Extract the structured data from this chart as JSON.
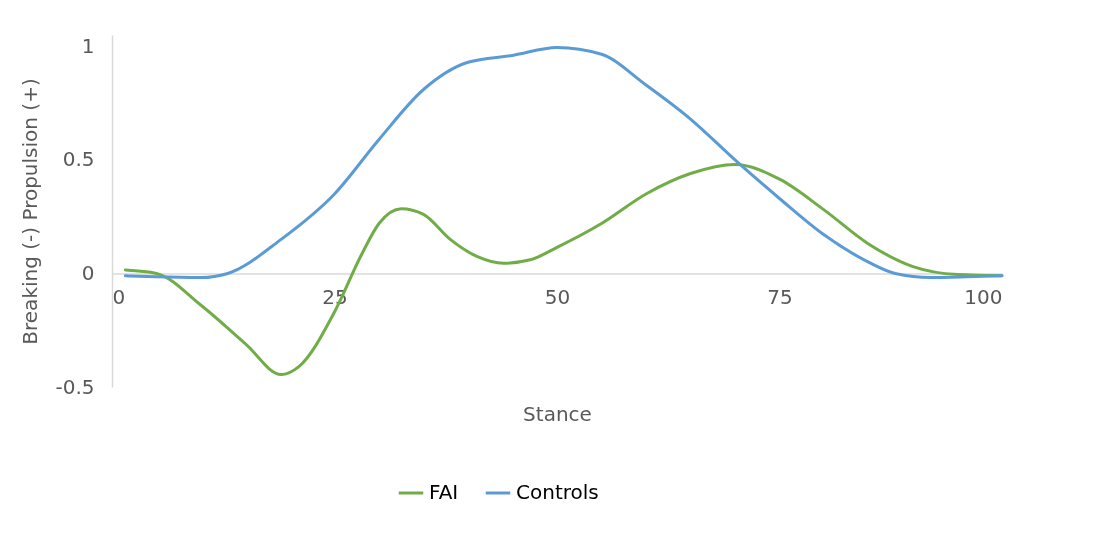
{
  "chart_data": {
    "type": "line",
    "xlabel": "Stance",
    "ylabel": "Breaking (-)     Propulsion (+)",
    "xlim": [
      0,
      100
    ],
    "xticks": [
      0,
      25,
      50,
      75,
      100
    ],
    "ylim": [
      -0.5,
      1.05
    ],
    "yticks": [
      -0.5,
      0,
      0.5,
      1
    ],
    "grid": false,
    "legend": "bottom",
    "marker": "none",
    "line_style": "solid",
    "series": [
      {
        "name": "FAI",
        "color": "#70ad47",
        "x": [
          1.5,
          5,
          10,
          15,
          19,
          21,
          25,
          28,
          30,
          32.5,
          35,
          38,
          41,
          44,
          47,
          50,
          55,
          60,
          65,
          70,
          75,
          80,
          85,
          90,
          95,
          100
        ],
        "values": [
          0.015,
          0.0,
          -0.14,
          -0.31,
          -0.445,
          -0.41,
          -0.17,
          0.08,
          0.22,
          0.285,
          0.26,
          0.15,
          0.075,
          0.045,
          0.06,
          0.115,
          0.22,
          0.35,
          0.44,
          0.48,
          0.415,
          0.28,
          0.13,
          0.03,
          -0.005,
          -0.01
        ]
      },
      {
        "name": "Controls",
        "color": "#5b9bd5",
        "x": [
          1.5,
          5,
          10,
          13,
          19,
          25,
          30,
          35,
          40,
          45,
          50,
          55,
          60,
          65,
          70,
          75,
          80,
          85,
          88,
          92,
          96,
          100
        ],
        "values": [
          -0.01,
          -0.015,
          -0.018,
          0.0,
          0.15,
          0.35,
          0.59,
          0.81,
          0.93,
          0.96,
          0.995,
          0.965,
          0.83,
          0.68,
          0.5,
          0.33,
          0.17,
          0.05,
          0.0,
          -0.018,
          -0.015,
          -0.01
        ]
      }
    ]
  }
}
